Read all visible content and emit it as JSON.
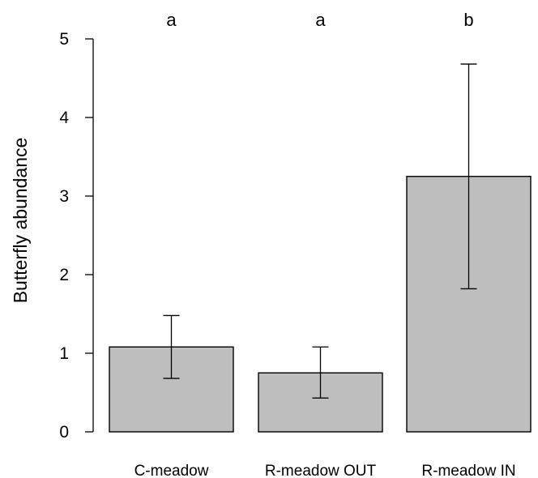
{
  "chart_data": {
    "type": "bar",
    "title": "",
    "xlabel": "",
    "ylabel": "Butterfly abundance",
    "ylim": [
      0,
      5
    ],
    "yticks": [
      0,
      1,
      2,
      3,
      4,
      5
    ],
    "categories": [
      "C-meadow",
      "R-meadow OUT",
      "R-meadow IN"
    ],
    "values": [
      1.08,
      0.75,
      3.25
    ],
    "error_low": [
      0.68,
      0.43,
      1.82
    ],
    "error_high": [
      1.48,
      1.08,
      4.68
    ],
    "significance_letters": [
      "a",
      "a",
      "b"
    ],
    "grid": false,
    "legend": "none",
    "colors": {
      "bar_fill": "#bebebe",
      "bar_stroke": "#000000",
      "axis": "#000000"
    }
  }
}
